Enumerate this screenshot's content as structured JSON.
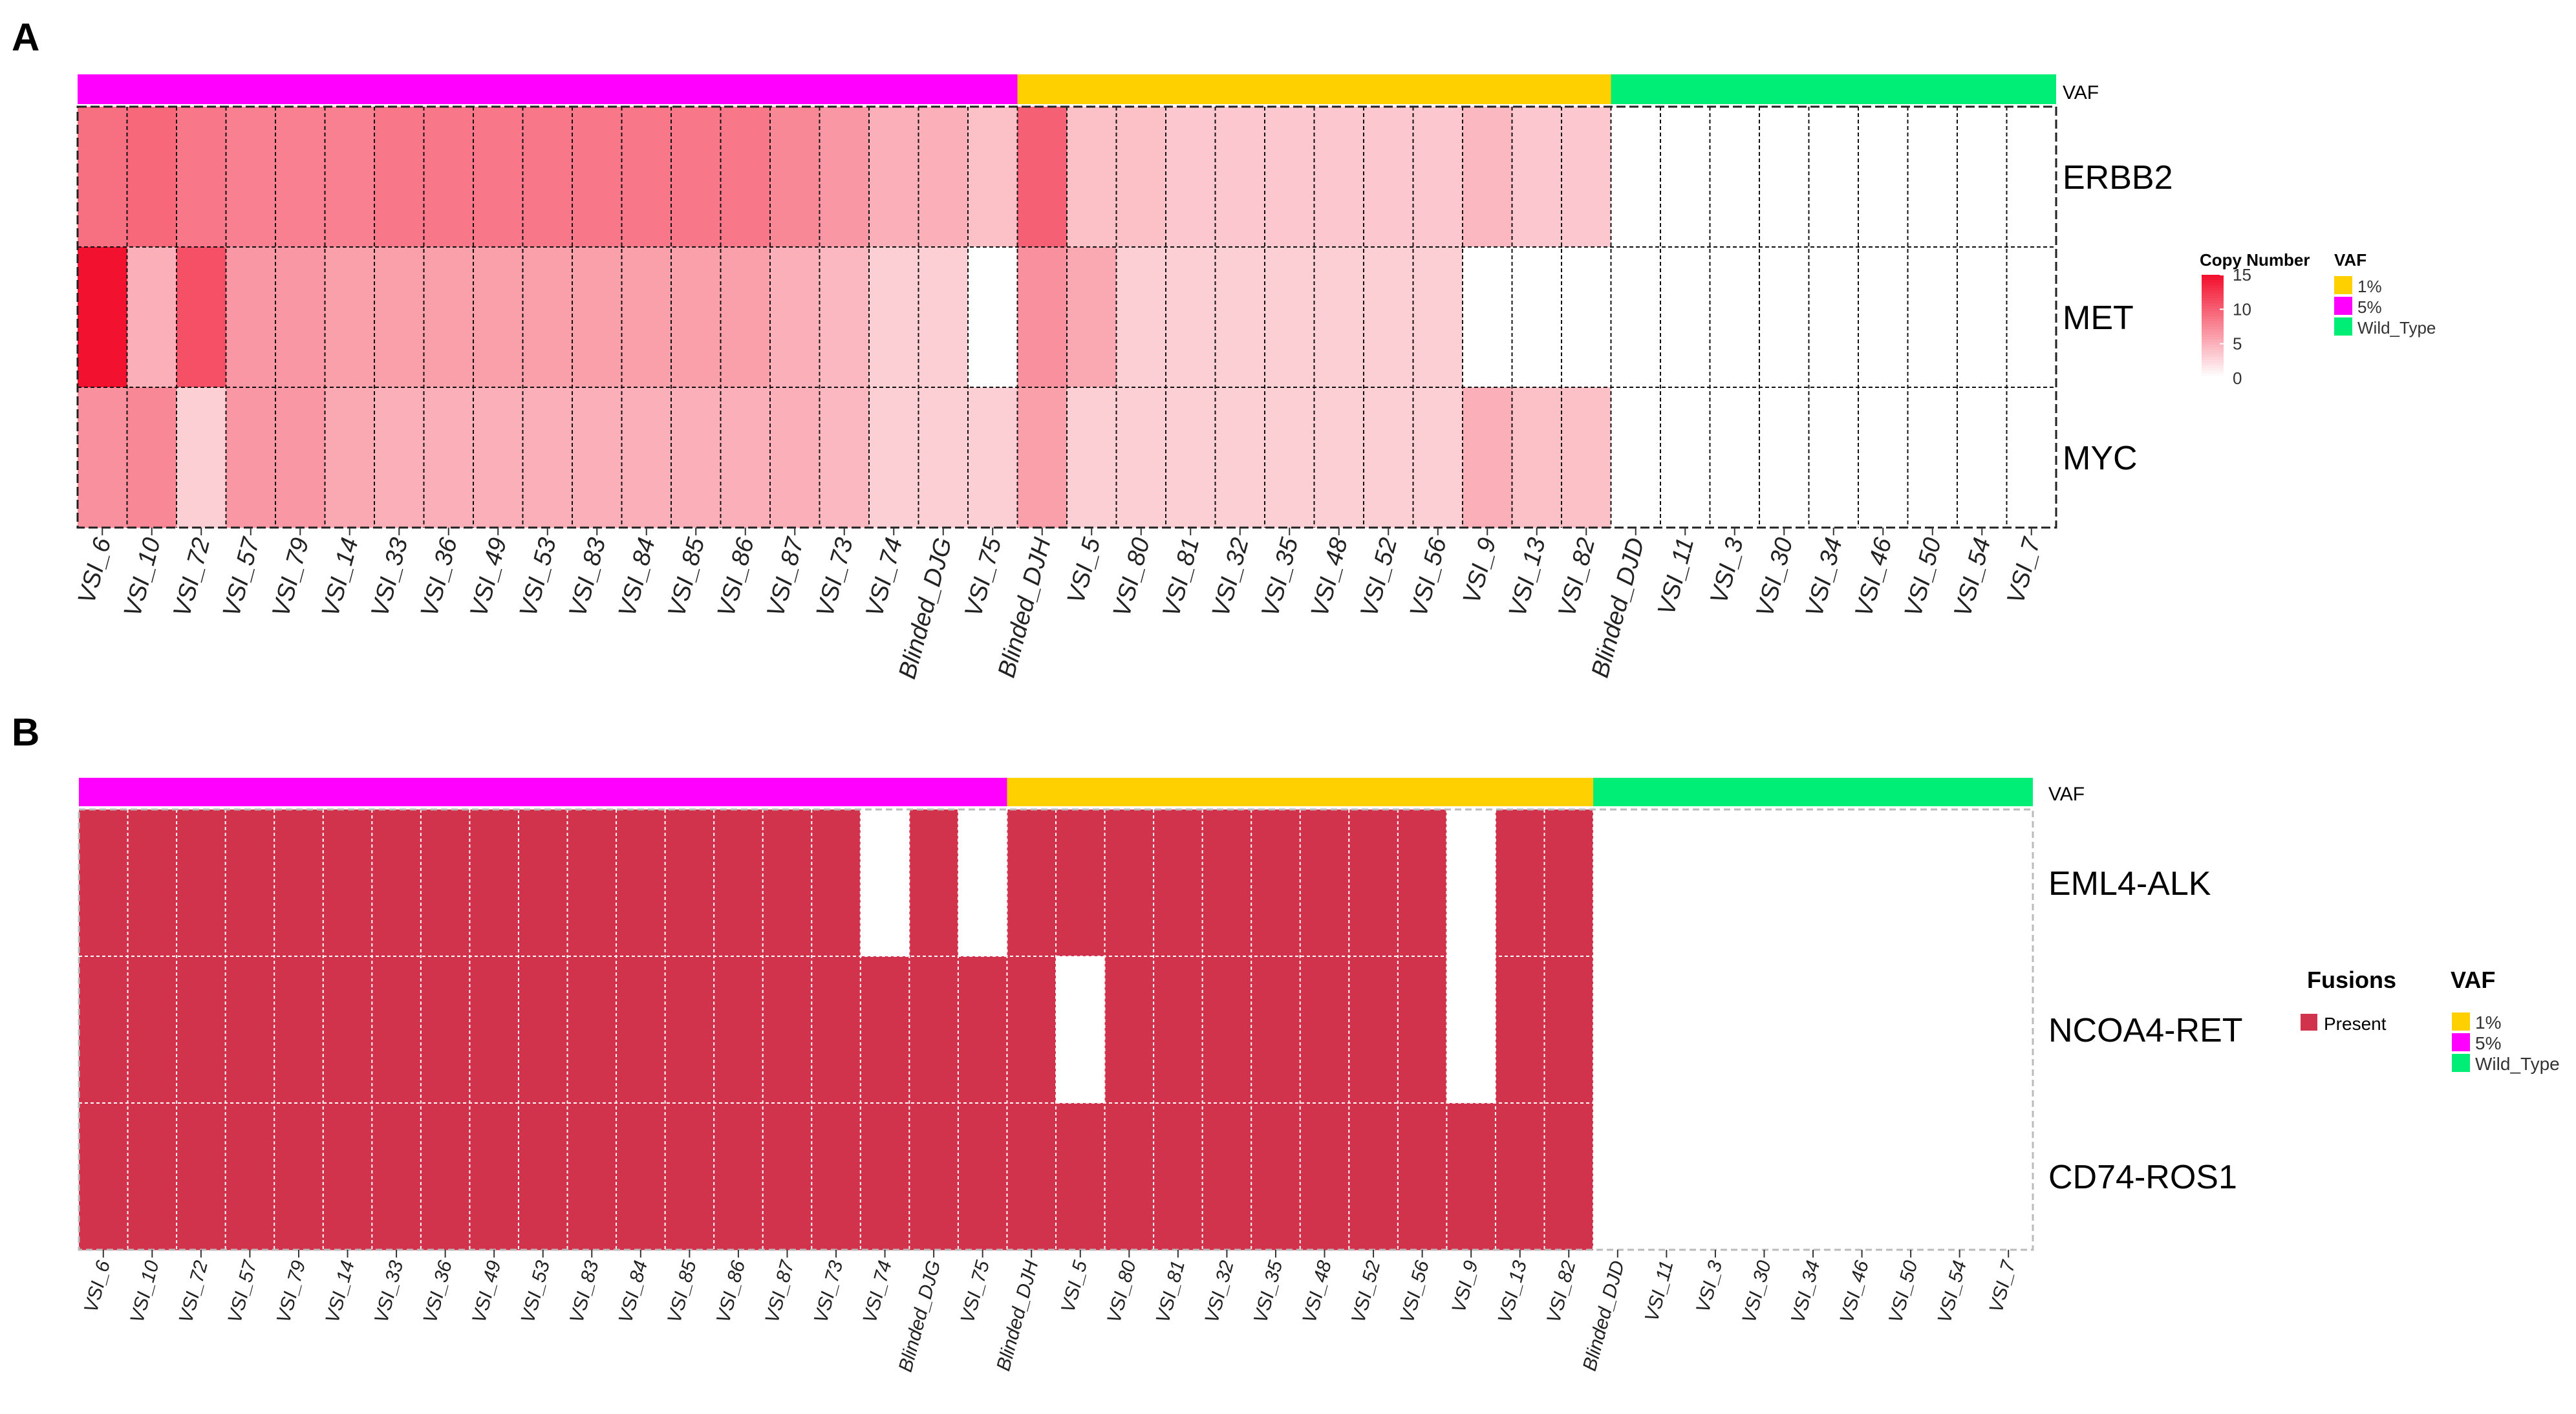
{
  "colors": {
    "vaf_5pct": "#FF00FF",
    "vaf_1pct": "#FFD000",
    "vaf_wild_type": "#00EE76",
    "cn_high": "#F2112E",
    "cn_low": "#FFFFFF",
    "fusion_present": "#D1334D",
    "fusion_absent": "#FFFFFF"
  },
  "chart_data": [
    {
      "type": "heatmap",
      "panel_label": "A",
      "title": "",
      "vaf_bar_label": "VAF",
      "columns": [
        "VSI_6",
        "VSI_10",
        "VSI_72",
        "VSI_57",
        "VSI_79",
        "VSI_14",
        "VSI_33",
        "VSI_36",
        "VSI_49",
        "VSI_53",
        "VSI_83",
        "VSI_84",
        "VSI_85",
        "VSI_86",
        "VSI_87",
        "VSI_73",
        "VSI_74",
        "Blinded_DJG",
        "VSI_75",
        "Blinded_DJH",
        "VSI_5",
        "VSI_80",
        "VSI_81",
        "VSI_32",
        "VSI_35",
        "VSI_48",
        "VSI_52",
        "VSI_56",
        "VSI_9",
        "VSI_13",
        "VSI_82",
        "Blinded_DJD",
        "VSI_11",
        "VSI_3",
        "VSI_30",
        "VSI_34",
        "VSI_46",
        "VSI_50",
        "VSI_54",
        "VSI_7"
      ],
      "column_vaf": [
        "5%",
        "5%",
        "5%",
        "5%",
        "5%",
        "5%",
        "5%",
        "5%",
        "5%",
        "5%",
        "5%",
        "5%",
        "5%",
        "5%",
        "5%",
        "5%",
        "5%",
        "5%",
        "5%",
        "1%",
        "1%",
        "1%",
        "1%",
        "1%",
        "1%",
        "1%",
        "1%",
        "1%",
        "1%",
        "1%",
        "1%",
        "Wild_Type",
        "Wild_Type",
        "Wild_Type",
        "Wild_Type",
        "Wild_Type",
        "Wild_Type",
        "Wild_Type",
        "Wild_Type",
        "Wild_Type"
      ],
      "rows": [
        "ERBB2",
        "MET",
        "MYC"
      ],
      "values": [
        [
          9,
          9.5,
          8.5,
          8,
          8,
          8,
          8.5,
          8.5,
          8.5,
          8.5,
          8.5,
          8.5,
          8.5,
          8.5,
          7.5,
          6.5,
          5,
          5,
          4,
          10,
          4,
          4,
          3.5,
          3.5,
          3.5,
          3.5,
          3.5,
          3.5,
          4.5,
          3.5,
          3.5,
          0,
          0,
          0,
          0,
          0,
          0,
          0,
          0,
          0
        ],
        [
          15,
          5,
          11,
          6.5,
          6.5,
          6,
          6,
          6,
          6,
          6,
          6,
          6,
          6,
          6,
          5,
          4.5,
          3,
          3,
          0,
          7,
          5.5,
          3,
          3,
          3,
          3,
          3,
          3,
          3,
          0,
          0,
          0,
          0,
          0,
          0,
          0,
          0,
          0,
          0,
          0,
          0
        ],
        [
          7,
          7.5,
          3,
          6.5,
          6.5,
          5.5,
          5,
          5,
          5,
          5,
          5,
          5,
          5,
          5,
          5,
          4.5,
          3,
          3,
          3,
          6,
          3,
          3,
          3,
          3,
          3,
          3,
          3,
          3,
          5,
          4,
          4,
          0,
          0,
          0,
          0,
          0,
          0,
          0,
          0,
          0
        ]
      ],
      "legend_cn": {
        "title": "Copy Number",
        "ticks": [
          15,
          10,
          5,
          0
        ],
        "range": [
          0,
          15
        ]
      },
      "legend_vaf": {
        "title": "VAF",
        "entries": [
          "1%",
          "5%",
          "Wild_Type"
        ]
      }
    },
    {
      "type": "heatmap",
      "panel_label": "B",
      "title": "",
      "vaf_bar_label": "VAF",
      "columns": [
        "VSI_6",
        "VSI_10",
        "VSI_72",
        "VSI_57",
        "VSI_79",
        "VSI_14",
        "VSI_33",
        "VSI_36",
        "VSI_49",
        "VSI_53",
        "VSI_83",
        "VSI_84",
        "VSI_85",
        "VSI_86",
        "VSI_87",
        "VSI_73",
        "VSI_74",
        "Blinded_DJG",
        "VSI_75",
        "Blinded_DJH",
        "VSI_5",
        "VSI_80",
        "VSI_81",
        "VSI_32",
        "VSI_35",
        "VSI_48",
        "VSI_52",
        "VSI_56",
        "VSI_9",
        "VSI_13",
        "VSI_82",
        "Blinded_DJD",
        "VSI_11",
        "VSI_3",
        "VSI_30",
        "VSI_34",
        "VSI_46",
        "VSI_50",
        "VSI_54",
        "VSI_7"
      ],
      "column_vaf": [
        "5%",
        "5%",
        "5%",
        "5%",
        "5%",
        "5%",
        "5%",
        "5%",
        "5%",
        "5%",
        "5%",
        "5%",
        "5%",
        "5%",
        "5%",
        "5%",
        "5%",
        "5%",
        "5%",
        "1%",
        "1%",
        "1%",
        "1%",
        "1%",
        "1%",
        "1%",
        "1%",
        "1%",
        "1%",
        "1%",
        "1%",
        "Wild_Type",
        "Wild_Type",
        "Wild_Type",
        "Wild_Type",
        "Wild_Type",
        "Wild_Type",
        "Wild_Type",
        "Wild_Type",
        "Wild_Type"
      ],
      "rows": [
        "EML4-ALK",
        "NCOA4-RET",
        "CD74-ROS1"
      ],
      "values": [
        [
          1,
          1,
          1,
          1,
          1,
          1,
          1,
          1,
          1,
          1,
          1,
          1,
          1,
          1,
          1,
          1,
          0,
          1,
          0,
          1,
          1,
          1,
          1,
          1,
          1,
          1,
          1,
          1,
          0,
          1,
          1,
          0,
          0,
          0,
          0,
          0,
          0,
          0,
          0,
          0
        ],
        [
          1,
          1,
          1,
          1,
          1,
          1,
          1,
          1,
          1,
          1,
          1,
          1,
          1,
          1,
          1,
          1,
          1,
          1,
          1,
          1,
          0,
          1,
          1,
          1,
          1,
          1,
          1,
          1,
          0,
          1,
          1,
          0,
          0,
          0,
          0,
          0,
          0,
          0,
          0,
          0
        ],
        [
          1,
          1,
          1,
          1,
          1,
          1,
          1,
          1,
          1,
          1,
          1,
          1,
          1,
          1,
          1,
          1,
          1,
          1,
          1,
          1,
          1,
          1,
          1,
          1,
          1,
          1,
          1,
          1,
          1,
          1,
          1,
          0,
          0,
          0,
          0,
          0,
          0,
          0,
          0,
          0
        ]
      ],
      "legend_fusions": {
        "title": "Fusions",
        "entries": [
          "Present"
        ]
      },
      "legend_vaf": {
        "title": "VAF",
        "entries": [
          "1%",
          "5%",
          "Wild_Type"
        ]
      }
    }
  ]
}
